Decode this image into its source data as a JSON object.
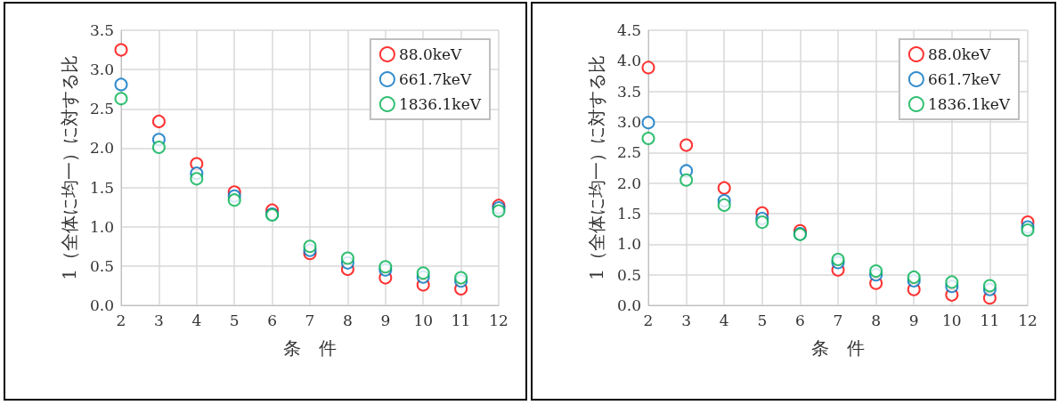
{
  "chart_data": [
    {
      "type": "scatter",
      "x": [
        2,
        3,
        4,
        5,
        6,
        7,
        8,
        9,
        10,
        11,
        12
      ],
      "xlim": [
        2,
        12
      ],
      "xticks": [
        2,
        3,
        4,
        5,
        6,
        7,
        8,
        9,
        10,
        11,
        12
      ],
      "ylim": [
        0,
        3.5
      ],
      "yticks": [
        {
          "value": 0,
          "label": "0.0"
        },
        {
          "value": 0.5,
          "label": "0.5"
        },
        {
          "value": 1,
          "label": "1.0"
        },
        {
          "value": 1.5,
          "label": "1.5"
        },
        {
          "value": 2,
          "label": "2.0"
        },
        {
          "value": 2.5,
          "label": "2.5"
        },
        {
          "value": 3,
          "label": "3.0"
        },
        {
          "value": 3.5,
          "label": "3.5"
        }
      ],
      "xlabel": "条　件",
      "ylabel": "1（全体に均一）に対する比",
      "grid": true,
      "legend": "top right",
      "marker": "circle",
      "series": [
        {
          "name": "88.0keV",
          "color": "#ff0000",
          "values": [
            3.25,
            2.34,
            1.8,
            1.44,
            1.21,
            0.66,
            0.46,
            0.35,
            0.26,
            0.21,
            1.27
          ]
        },
        {
          "name": "661.7keV",
          "color": "#0070c0",
          "values": [
            2.81,
            2.11,
            1.68,
            1.39,
            1.16,
            0.7,
            0.54,
            0.45,
            0.36,
            0.31,
            1.24
          ]
        },
        {
          "name": "1836.1keV",
          "color": "#00b050",
          "values": [
            2.63,
            2.01,
            1.61,
            1.34,
            1.15,
            0.75,
            0.6,
            0.49,
            0.41,
            0.35,
            1.2
          ]
        }
      ]
    },
    {
      "type": "scatter",
      "x": [
        2,
        3,
        4,
        5,
        6,
        7,
        8,
        9,
        10,
        11,
        12
      ],
      "xlim": [
        2,
        12
      ],
      "xticks": [
        2,
        3,
        4,
        5,
        6,
        7,
        8,
        9,
        10,
        11,
        12
      ],
      "ylim": [
        0,
        4.5
      ],
      "yticks": [
        {
          "value": 0,
          "label": "0.0"
        },
        {
          "value": 0.5,
          "label": "0.5"
        },
        {
          "value": 1,
          "label": "1.0"
        },
        {
          "value": 1.5,
          "label": "1.5"
        },
        {
          "value": 2,
          "label": "2.0"
        },
        {
          "value": 2.5,
          "label": "2.5"
        },
        {
          "value": 3,
          "label": "3.0"
        },
        {
          "value": 3.5,
          "label": "3.5"
        },
        {
          "value": 4,
          "label": "4.0"
        },
        {
          "value": 4.5,
          "label": "4.5"
        }
      ],
      "xlabel": "条　件",
      "ylabel": "1（全体に均一）に対する比",
      "grid": true,
      "legend": "top right",
      "marker": "circle",
      "series": [
        {
          "name": "88.0keV",
          "color": "#ff0000",
          "values": [
            3.89,
            2.62,
            1.92,
            1.51,
            1.22,
            0.58,
            0.36,
            0.26,
            0.17,
            0.12,
            1.36
          ]
        },
        {
          "name": "661.7keV",
          "color": "#0070c0",
          "values": [
            2.99,
            2.2,
            1.71,
            1.42,
            1.17,
            0.7,
            0.5,
            0.4,
            0.31,
            0.26,
            1.28
          ]
        },
        {
          "name": "1836.1keV",
          "color": "#00b050",
          "values": [
            2.73,
            2.05,
            1.64,
            1.36,
            1.16,
            0.75,
            0.56,
            0.46,
            0.38,
            0.32,
            1.23
          ]
        }
      ]
    }
  ]
}
